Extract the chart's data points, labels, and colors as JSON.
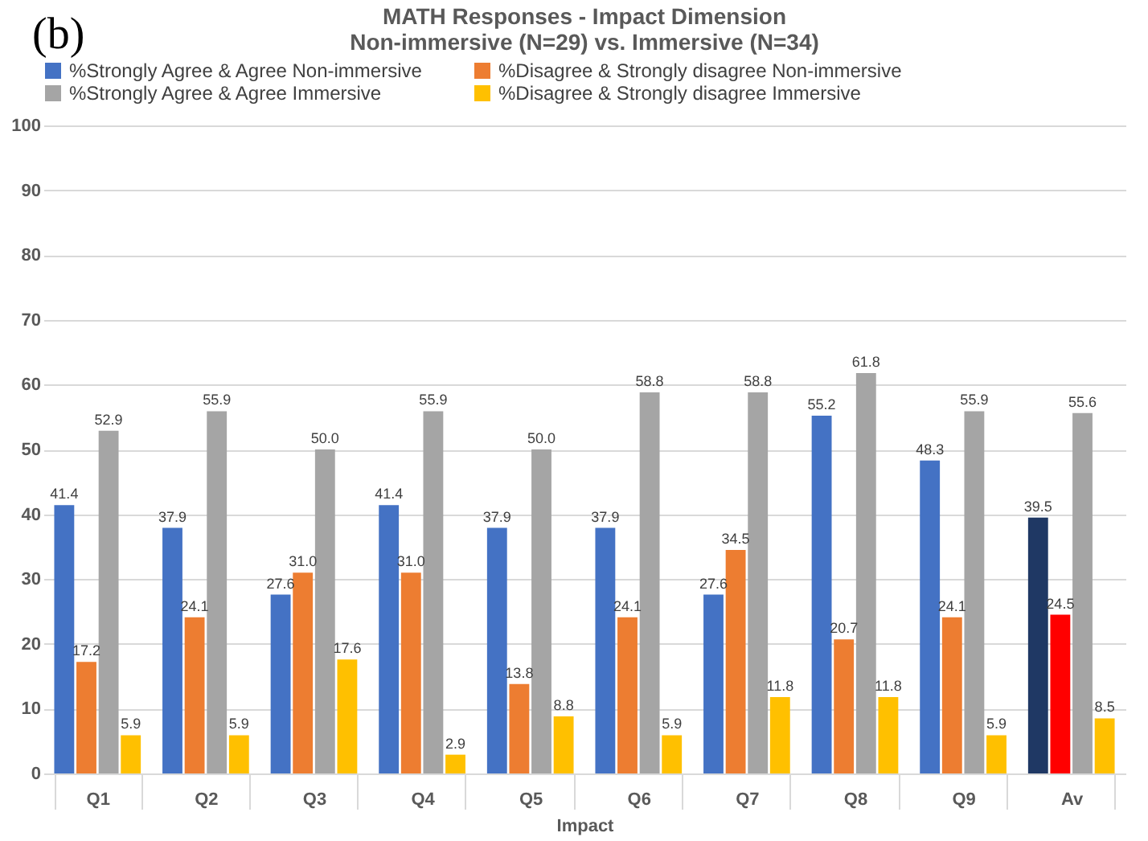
{
  "chart_data": {
    "type": "bar",
    "title": [
      "MATH Responses - Impact Dimension",
      "Non-immersive (N=29) vs. Immersive (N=34)"
    ],
    "annotations": [
      "(b)"
    ],
    "xlabel": "Impact",
    "categories": [
      "Q1",
      "Q2",
      "Q3",
      "Q4",
      "Q5",
      "Q6",
      "Q7",
      "Q8",
      "Q9",
      "Av"
    ],
    "series": [
      {
        "name": "%Strongly Agree & Agree Non-immersive",
        "color": "#4472c4",
        "colors": [
          "#4472c4",
          "#4472c4",
          "#4472c4",
          "#4472c4",
          "#4472c4",
          "#4472c4",
          "#4472c4",
          "#4472c4",
          "#4472c4",
          "#1f3864"
        ],
        "values": [
          41.4,
          37.9,
          27.6,
          41.4,
          37.9,
          37.9,
          27.6,
          55.2,
          48.3,
          39.5
        ],
        "value_labels": [
          "41.4",
          "37.9",
          "27.6",
          "41.4",
          "37.9",
          "37.9",
          "27.6",
          "55.2",
          "48.3",
          "39.5"
        ]
      },
      {
        "name": "%Disagree & Strongly disagree Non-immersive",
        "color": "#ed7d31",
        "colors": [
          "#ed7d31",
          "#ed7d31",
          "#ed7d31",
          "#ed7d31",
          "#ed7d31",
          "#ed7d31",
          "#ed7d31",
          "#ed7d31",
          "#ed7d31",
          "#ff0000"
        ],
        "values": [
          17.2,
          24.1,
          31.0,
          31.0,
          13.8,
          24.1,
          34.5,
          20.7,
          24.1,
          24.5
        ],
        "value_labels": [
          "17.2",
          "24.1",
          "31.0",
          "31.0",
          "13.8",
          "24.1",
          "34.5",
          "20.7",
          "24.1",
          "24.5"
        ]
      },
      {
        "name": "%Strongly Agree & Agree Immersive",
        "color": "#a5a5a5",
        "values": [
          52.9,
          55.9,
          50.0,
          55.9,
          50.0,
          58.8,
          58.8,
          61.8,
          55.9,
          55.6
        ],
        "value_labels": [
          "52.9",
          "55.9",
          "50.0",
          "55.9",
          "50.0",
          "58.8",
          "58.8",
          "61.8",
          "55.9",
          "55.6"
        ]
      },
      {
        "name": "%Disagree & Strongly disagree Immersive",
        "color": "#ffc000",
        "values": [
          5.9,
          5.9,
          17.6,
          2.9,
          8.8,
          5.9,
          11.8,
          11.8,
          5.9,
          8.5
        ],
        "value_labels": [
          "5.9",
          "5.9",
          "17.6",
          "2.9",
          "8.8",
          "5.9",
          "11.8",
          "11.8",
          "5.9",
          "8.5"
        ]
      }
    ],
    "ylim": [
      0,
      100
    ],
    "yticks": [
      0,
      10,
      20,
      30,
      40,
      50,
      60,
      70,
      80,
      90,
      100
    ],
    "grid": "y",
    "legend": "top"
  }
}
